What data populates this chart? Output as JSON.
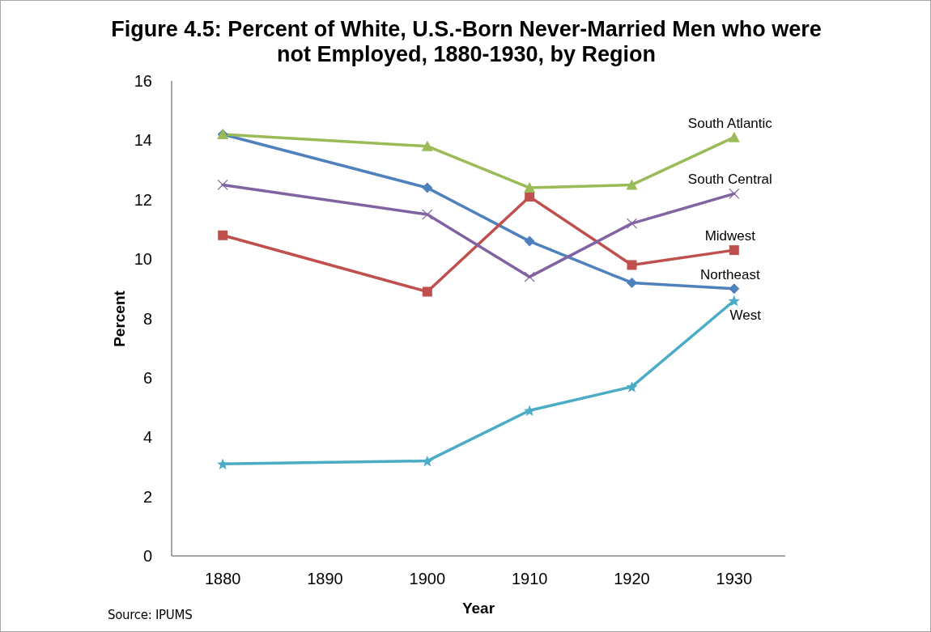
{
  "chart_data": {
    "type": "line",
    "title": "Figure 4.5: Percent of White, U.S.-Born Never-Married Men who were not Employed, 1880-1930, by Region",
    "xlabel": "Year",
    "ylabel": "Percent",
    "annotations": [
      "Source: IPUMS"
    ],
    "x": [
      1880,
      1900,
      1910,
      1920,
      1930
    ],
    "series": [
      {
        "name": "Northeast",
        "color": "#4f81bd",
        "marker": "diamond",
        "values": [
          14.2,
          12.4,
          10.6,
          9.2,
          9.0
        ]
      },
      {
        "name": "Midwest",
        "color": "#c0504d",
        "marker": "square",
        "values": [
          10.8,
          8.9,
          12.1,
          9.8,
          10.3
        ]
      },
      {
        "name": "South Atlantic",
        "color": "#9bbb59",
        "marker": "triangle",
        "values": [
          14.2,
          13.8,
          12.4,
          12.5,
          14.1
        ]
      },
      {
        "name": "South Central",
        "color": "#8064a2",
        "marker": "cross",
        "values": [
          12.5,
          11.5,
          9.4,
          11.2,
          12.2
        ]
      },
      {
        "name": "West",
        "color": "#4bacc6",
        "marker": "star",
        "values": [
          3.1,
          3.2,
          4.9,
          5.7,
          8.6
        ]
      }
    ],
    "xlim": [
      1875,
      1935
    ],
    "xticks": [
      1880,
      1890,
      1900,
      1910,
      1920,
      1930
    ],
    "ylim": [
      0,
      16
    ],
    "yticks": [
      0,
      2,
      4,
      6,
      8,
      10,
      12,
      14,
      16
    ]
  }
}
